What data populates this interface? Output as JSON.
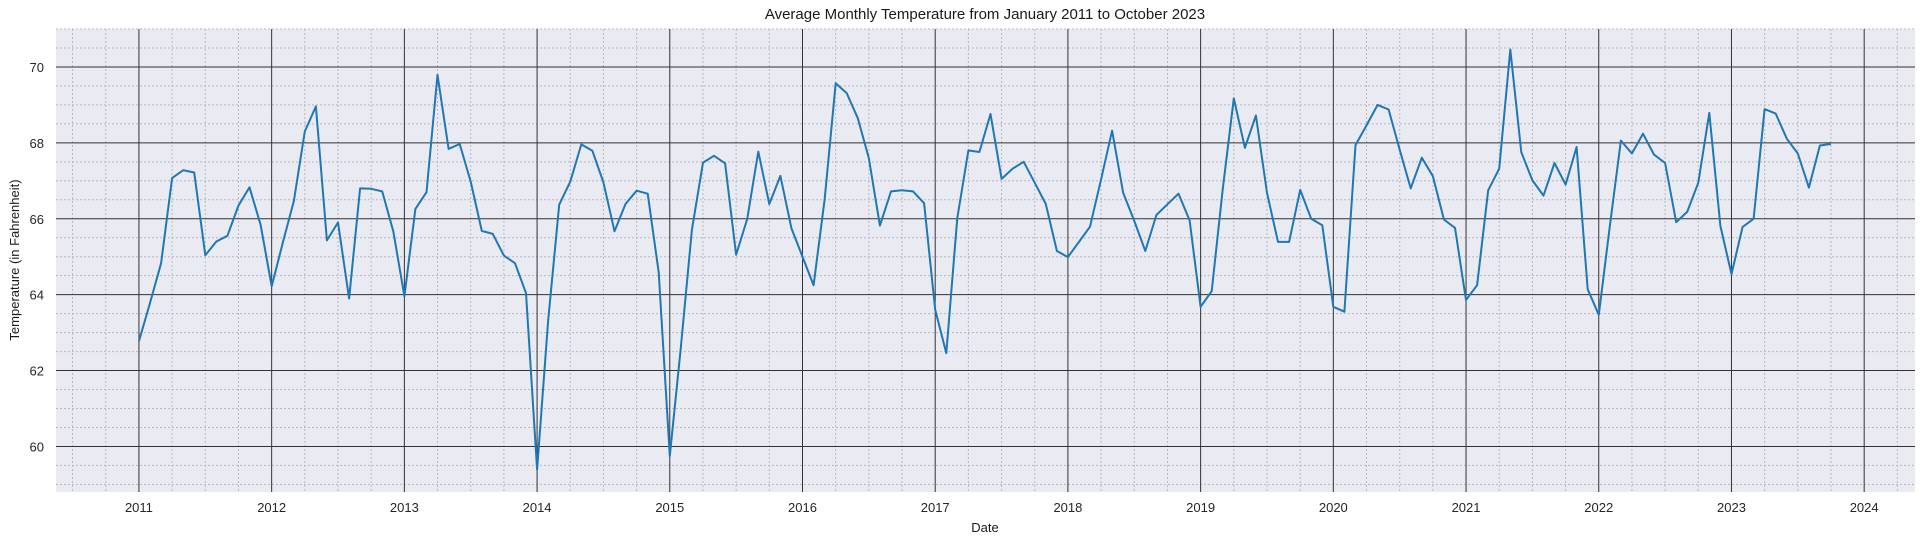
{
  "chart_data": {
    "type": "line",
    "title": "Average Monthly Temperature from January 2011 to October 2023",
    "xlabel": "Date",
    "ylabel": "Temperature (in Fahrenheit)",
    "x_start": "2011-01",
    "frequency": "monthly",
    "xlim": [
      2010.375,
      2024.383
    ],
    "ylim": [
      58.8,
      71.0
    ],
    "x_ticks": [
      "2011",
      "2012",
      "2013",
      "2014",
      "2015",
      "2016",
      "2017",
      "2018",
      "2019",
      "2020",
      "2021",
      "2022",
      "2023",
      "2024"
    ],
    "y_ticks": [
      "60",
      "62",
      "64",
      "66",
      "68",
      "70"
    ],
    "grid": true,
    "minor_grid": true,
    "legend": "none",
    "series": [
      {
        "name": "Average Temperature",
        "color": "#1f77b4",
        "values": [
          62.77,
          63.78,
          64.83,
          67.07,
          67.28,
          67.22,
          65.04,
          65.4,
          65.55,
          66.35,
          66.83,
          65.84,
          64.22,
          65.36,
          66.46,
          68.3,
          68.96,
          65.43,
          65.9,
          63.9,
          66.8,
          66.79,
          66.72,
          65.67,
          63.96,
          66.26,
          66.7,
          69.79,
          67.84,
          67.97,
          66.98,
          65.68,
          65.6,
          65.03,
          64.83,
          64.04,
          59.39,
          63.3,
          66.37,
          66.98,
          67.96,
          67.79,
          66.96,
          65.67,
          66.39,
          66.74,
          66.66,
          64.59,
          59.75,
          62.6,
          65.71,
          67.48,
          67.66,
          67.46,
          65.05,
          65.99,
          67.77,
          66.39,
          67.13,
          65.75,
          65.0,
          64.25,
          66.5,
          69.57,
          69.31,
          68.65,
          67.6,
          65.82,
          66.72,
          66.75,
          66.72,
          66.41,
          63.6,
          62.46,
          66.02,
          67.8,
          67.76,
          68.76,
          67.05,
          67.32,
          67.5,
          66.95,
          66.39,
          65.15,
          64.99,
          65.39,
          65.79,
          67.04,
          68.32,
          66.68,
          65.94,
          65.15,
          66.1,
          66.38,
          66.66,
          65.96,
          63.68,
          64.09,
          66.77,
          69.17,
          67.87,
          68.72,
          66.68,
          65.39,
          65.39,
          66.76,
          66.0,
          65.83,
          63.68,
          63.55,
          67.94,
          68.46,
          69.0,
          68.88,
          67.82,
          66.8,
          67.61,
          67.12,
          65.98,
          65.76,
          63.86,
          64.25,
          66.75,
          67.32,
          70.46,
          67.75,
          67.01,
          66.61,
          67.47,
          66.9,
          67.89,
          64.14,
          63.47,
          65.8,
          68.06,
          67.72,
          68.24,
          67.69,
          67.47,
          65.91,
          66.18,
          66.95,
          68.79,
          65.81,
          64.54,
          65.78,
          66.0,
          68.89,
          68.77,
          68.11,
          67.72,
          66.82,
          67.93,
          67.97
        ]
      }
    ],
    "colors": {
      "plot_background": "#eaeaf2",
      "major_grid": "#333333",
      "minor_grid": "#b8b8c0"
    }
  }
}
